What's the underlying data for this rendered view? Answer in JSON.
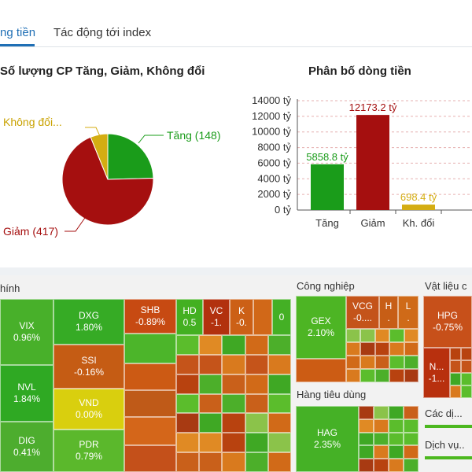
{
  "tabs": [
    {
      "label": "ng tiền",
      "active": true
    },
    {
      "label": "Tác động tới index",
      "active": false
    }
  ],
  "pie_chart": {
    "title": "Số lượng CP Tăng, Giảm, Không đổi",
    "labels": {
      "up": "Tăng (148)",
      "down": "Giảm (417)",
      "flat": "Không đổi..."
    },
    "colors": {
      "up": "#1a9c1a",
      "down": "#a50f0f",
      "flat": "#d4ad12"
    }
  },
  "chart_data": [
    {
      "type": "pie",
      "title": "Số lượng CP Tăng, Giảm, Không đổi",
      "slices": [
        {
          "name": "Tăng",
          "value": 148
        },
        {
          "name": "Giảm",
          "value": 417
        },
        {
          "name": "Không đổi",
          "value": 37
        }
      ]
    },
    {
      "type": "bar",
      "title": "Phân bố dòng tiền",
      "categories": [
        "Tăng",
        "Giảm",
        "Kh. đổi"
      ],
      "values": [
        5858.8,
        12173.2,
        698.4
      ],
      "value_labels": [
        "5858.8 tỷ",
        "12173.2 tỷ",
        "698.4 tỷ"
      ],
      "colors": [
        "#1a9c1a",
        "#a50f0f",
        "#d4ad12"
      ],
      "y_ticks": [
        "0 tỷ",
        "2000 tỷ",
        "4000 tỷ",
        "6000 tỷ",
        "8000 tỷ",
        "10000 tỷ",
        "12000 tỷ",
        "14000 tỷ"
      ],
      "ylim": [
        0,
        14000
      ],
      "grid": true
    }
  ],
  "heatmap": {
    "sector_finance": "hính",
    "sector_industry": "Công nghiệp",
    "sector_materials": "Vật liệu c",
    "sector_consumer": "Hàng tiêu dùng",
    "sector_services": "Các dị...",
    "sector_utilities": "Dịch vụ..",
    "tiles": {
      "vix": {
        "ticker": "VIX",
        "change": "0.96%"
      },
      "nvl": {
        "ticker": "NVL",
        "change": "1.84%"
      },
      "dig": {
        "ticker": "DIG",
        "change": "0.41%"
      },
      "dxg": {
        "ticker": "DXG",
        "change": "1.80%"
      },
      "ssi": {
        "ticker": "SSI",
        "change": "-0.16%"
      },
      "vnd": {
        "ticker": "VND",
        "change": "0.00%"
      },
      "pdr": {
        "ticker": "PDR",
        "change": "0.79%"
      },
      "shb": {
        "ticker": "SHB",
        "change": "-0.89%"
      },
      "hd": {
        "ticker": "HD",
        "change": "0.5"
      },
      "vc": {
        "ticker": "VC",
        "change": "-1."
      },
      "k": {
        "ticker": "K",
        "change": "-0."
      },
      "z0": {
        "ticker": "",
        "change": "0"
      },
      "gex": {
        "ticker": "GEX",
        "change": "2.10%"
      },
      "vcg": {
        "ticker": "VCG",
        "change": "-0...."
      },
      "h": {
        "ticker": "H",
        "change": "."
      },
      "l": {
        "ticker": "L",
        "change": "."
      },
      "hag": {
        "ticker": "HAG",
        "change": "2.35%"
      },
      "hpg": {
        "ticker": "HPG",
        "change": "-0.75%"
      },
      "n": {
        "ticker": "N...",
        "change": "-1..."
      }
    }
  }
}
